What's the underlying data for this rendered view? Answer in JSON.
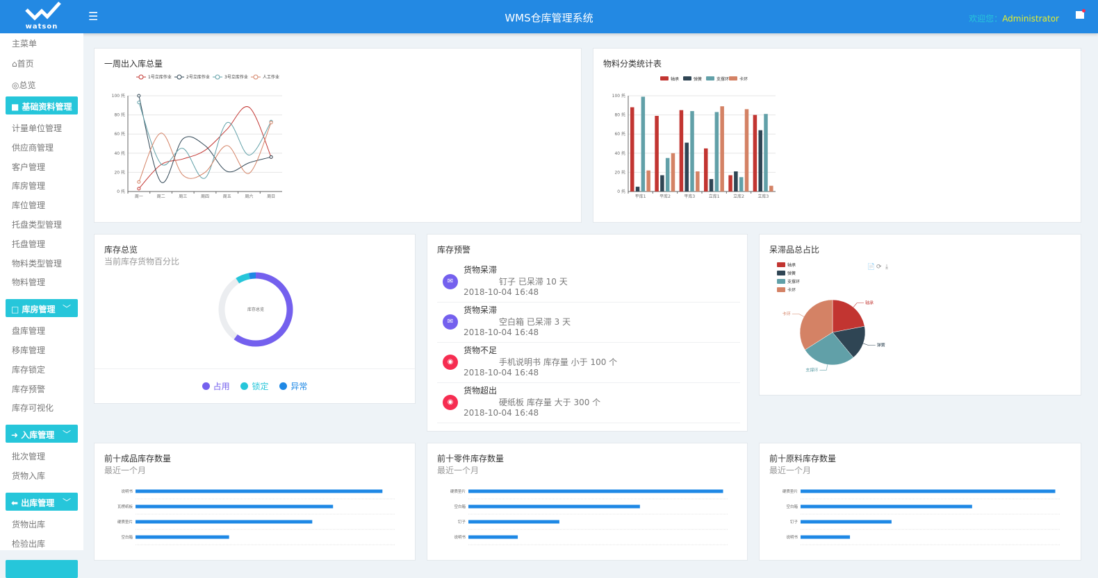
{
  "header": {
    "title": "WMS仓库管理系统",
    "logo_text": "watson",
    "welcome_label": "欢迎您：",
    "user": "Administrator",
    "menu_icon": "hamburger-icon",
    "flag_icon": "flag-icon"
  },
  "sidebar": {
    "main_menu": "主菜单",
    "home": "首页",
    "overview": "总览",
    "groups": [
      {
        "label": "基础资料管理",
        "items": [
          "计量单位管理",
          "供应商管理",
          "客户管理",
          "库房管理",
          "库位管理",
          "托盘类型管理",
          "托盘管理",
          "物料类型管理",
          "物料管理"
        ]
      },
      {
        "label": "库房管理",
        "items": [
          "盘库管理",
          "移库管理",
          "库存锁定",
          "库存预警",
          "库存可视化"
        ]
      },
      {
        "label": "入库管理",
        "items": [
          "批次管理",
          "货物入库"
        ]
      },
      {
        "label": "出库管理",
        "items": [
          "货物出库",
          "检验出库"
        ]
      }
    ]
  },
  "colors": {
    "header": "#2389e3",
    "accent": "#26c6da",
    "series": [
      "#c23531",
      "#2f4554",
      "#61a0a8",
      "#d48265"
    ],
    "used": "#7460ee",
    "locked": "#26c6da",
    "abnormal": "#1e88e5"
  },
  "chart_data": [
    {
      "type": "line",
      "title": "一周出入库总量",
      "categories": [
        "周一",
        "周二",
        "周三",
        "周四",
        "周五",
        "周六",
        "周日"
      ],
      "ylim": [
        0,
        100
      ],
      "yticks": [
        "0 托",
        "20 托",
        "40 托",
        "60 托",
        "80 托",
        "100 托"
      ],
      "grid": true,
      "legend": "top-center",
      "smooth": true,
      "series": [
        {
          "name": "1号立库作业",
          "values": [
            3,
            28,
            34,
            43,
            65,
            88,
            36
          ]
        },
        {
          "name": "2号立库作业",
          "values": [
            100,
            10,
            55,
            48,
            21,
            30,
            36
          ]
        },
        {
          "name": "3号立库作业",
          "values": [
            93,
            29,
            45,
            14,
            72,
            38,
            73
          ]
        },
        {
          "name": "人工作业",
          "values": [
            10,
            61,
            17,
            20,
            48,
            19,
            72
          ]
        }
      ]
    },
    {
      "type": "bar",
      "title": "物料分类统计表",
      "categories": [
        "平库1",
        "平库2",
        "平库3",
        "立库1",
        "立库2",
        "立库3"
      ],
      "ylim": [
        0,
        100
      ],
      "yticks": [
        "0 托",
        "20 托",
        "40 托",
        "60 托",
        "80 托",
        "100 托"
      ],
      "grid": true,
      "legend": "top-center",
      "series": [
        {
          "name": "轴承",
          "values": [
            88,
            79,
            85,
            45,
            17,
            80
          ]
        },
        {
          "name": "弹簧",
          "values": [
            5,
            17,
            51,
            13,
            21,
            64
          ]
        },
        {
          "name": "支撑环",
          "values": [
            99,
            35,
            84,
            83,
            15,
            81
          ]
        },
        {
          "name": "卡环",
          "values": [
            22,
            40,
            21,
            89,
            86,
            6
          ]
        }
      ]
    },
    {
      "type": "pie",
      "title": "呆滞品总占比",
      "legend": "top-left",
      "categories": [
        "轴承",
        "弹簧",
        "支撑环",
        "卡环"
      ],
      "values": [
        22,
        17,
        27,
        34
      ],
      "toolbox": [
        "data-view-icon",
        "refresh-icon",
        "download-icon"
      ]
    },
    {
      "type": "pie",
      "title": "库存总览",
      "subtitle": "当前库存货物百分比",
      "center_label": "库存总览",
      "categories": [
        "占用",
        "锁定",
        "异常"
      ],
      "values": [
        60,
        6,
        3
      ]
    },
    {
      "type": "bar",
      "orientation": "horizontal",
      "title": "前十成品库存数量",
      "subtitle": "最近一个月",
      "categories": [
        "说明书",
        "瓦楞纸板",
        "硬质垫片",
        "空白箱"
      ],
      "values": [
        95,
        76,
        68,
        36
      ]
    },
    {
      "type": "bar",
      "orientation": "horizontal",
      "title": "前十零件库存数量",
      "subtitle": "最近一个月",
      "categories": [
        "硬质垫片",
        "空白箱",
        "钉子",
        "说明书"
      ],
      "values": [
        98,
        66,
        35,
        19
      ]
    },
    {
      "type": "bar",
      "orientation": "horizontal",
      "title": "前十原料库存数量",
      "subtitle": "最近一个月",
      "categories": [
        "硬质垫片",
        "空白箱",
        "钉子",
        "说明书"
      ],
      "values": [
        98,
        66,
        35,
        19
      ]
    }
  ],
  "warnings": {
    "title": "库存预警",
    "items": [
      {
        "title": "货物呆滞",
        "detail": "钉子 已呆滞 10 天",
        "time": "2018-10-04 16:48",
        "icon": "mail-icon",
        "color": "#7460ee"
      },
      {
        "title": "货物呆滞",
        "detail": "空白箱 已呆滞 3 天",
        "time": "2018-10-04 16:48",
        "icon": "mail-icon",
        "color": "#7460ee"
      },
      {
        "title": "货物不足",
        "detail": "手机说明书 库存量 小于 100 个",
        "time": "2018-10-04 16:48",
        "icon": "globe-icon",
        "color": "#f62d51"
      },
      {
        "title": "货物超出",
        "detail": "硬纸板 库存量 大于 300 个",
        "time": "2018-10-04 16:48",
        "icon": "globe-icon",
        "color": "#f62d51"
      }
    ]
  }
}
